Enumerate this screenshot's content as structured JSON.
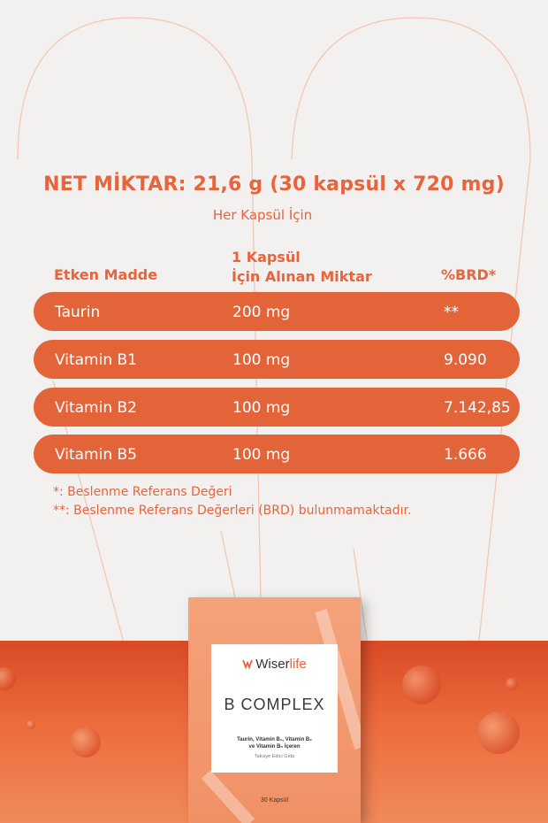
{
  "header": {
    "net_amount": "NET MİKTAR: 21,6 g (30 kapsül x 720 mg)",
    "per_capsule": "Her Kapsül İçin"
  },
  "table": {
    "columns": {
      "ingredient": "Etken Madde",
      "amount_line1": "1 Kapsül",
      "amount_line2": "İçin Alınan Miktar",
      "brd": "%BRD*"
    },
    "rows": [
      {
        "ingredient": "Taurin",
        "amount": "200 mg",
        "brd": "**"
      },
      {
        "ingredient": "Vitamin B1",
        "amount": "100 mg",
        "brd": "9.090"
      },
      {
        "ingredient": "Vitamin B2",
        "amount": "100 mg",
        "brd": "7.142,85"
      },
      {
        "ingredient": "Vitamin B5",
        "amount": "100 mg",
        "brd": "1.666"
      }
    ]
  },
  "notes": {
    "note1": "*: Beslenme Referans Değeri",
    "note2": "**: Beslenme Referans Değerleri (BRD) bulunmamaktadır."
  },
  "product": {
    "brand_part1": "Wiser",
    "brand_part2": "life",
    "name": "B COMPLEX",
    "desc_line1": "Taurin, Vitamin B₁, Vitamin B₂",
    "desc_line2": "ve Vitamin B₅ İçeren",
    "type": "Takviye Edici Gıda",
    "count": "30 Kapsül"
  },
  "colors": {
    "accent": "#e8643a",
    "row_fill": "#e4643a",
    "background": "#f2f1f0"
  }
}
